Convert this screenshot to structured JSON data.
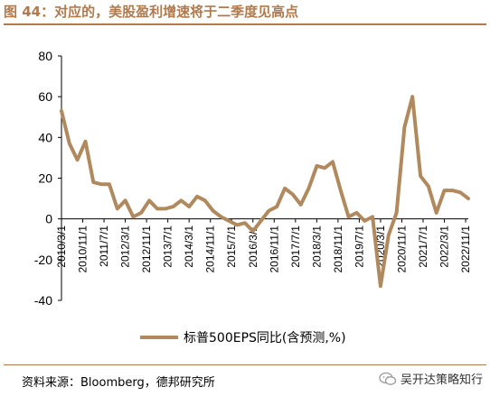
{
  "title": "图 44：对应的，美股盈利增速将于二季度见高点",
  "source": "资料来源：Bloomberg，德邦研究所",
  "watermark": "吴开达策略知行",
  "colors": {
    "accent": "#b07a4e",
    "series": "#b08a5e"
  },
  "chart_data": {
    "type": "line",
    "ylim": [
      -40,
      80
    ],
    "yticks": [
      -40,
      -20,
      0,
      20,
      40,
      60,
      80
    ],
    "xtick_labels": [
      "2010/3/1",
      "2010/11/1",
      "2011/7/1",
      "2012/3/1",
      "2012/11/1",
      "2013/7/1",
      "2014/3/1",
      "2014/11/1",
      "2015/7/1",
      "2016/3/1",
      "2016/11/1",
      "2017/7/1",
      "2018/3/1",
      "2018/11/1",
      "2019/7/1",
      "2020/3/1",
      "2020/11/1",
      "2021/7/1",
      "2022/3/1",
      "2022/11/1"
    ],
    "legend": "bottom",
    "series": [
      {
        "name": "标普500EPS同比(含预测,%)",
        "x": [
          "2010/3/1",
          "2010/6/1",
          "2010/9/1",
          "2010/12/1",
          "2011/3/1",
          "2011/6/1",
          "2011/9/1",
          "2011/12/1",
          "2012/3/1",
          "2012/6/1",
          "2012/9/1",
          "2012/12/1",
          "2013/3/1",
          "2013/6/1",
          "2013/9/1",
          "2013/12/1",
          "2014/3/1",
          "2014/6/1",
          "2014/9/1",
          "2014/12/1",
          "2015/3/1",
          "2015/6/1",
          "2015/9/1",
          "2015/12/1",
          "2016/3/1",
          "2016/6/1",
          "2016/9/1",
          "2016/12/1",
          "2017/3/1",
          "2017/6/1",
          "2017/9/1",
          "2017/12/1",
          "2018/3/1",
          "2018/6/1",
          "2018/9/1",
          "2018/12/1",
          "2019/3/1",
          "2019/6/1",
          "2019/9/1",
          "2019/12/1",
          "2020/3/1",
          "2020/6/1",
          "2020/9/1",
          "2020/12/1",
          "2021/3/1",
          "2021/6/1",
          "2021/9/1",
          "2021/12/1",
          "2022/3/1",
          "2022/6/1",
          "2022/9/1",
          "2022/12/1"
        ],
        "values": [
          53,
          37,
          29,
          38,
          18,
          17,
          17,
          5,
          9,
          1,
          3,
          9,
          5,
          5,
          6,
          9,
          6,
          11,
          9,
          4,
          1,
          -1,
          -3,
          -2,
          -6,
          -1,
          4,
          6,
          15,
          12,
          7,
          15,
          26,
          25,
          28,
          14,
          1,
          3,
          -1,
          1,
          -33,
          -8,
          3,
          45,
          60,
          21,
          16,
          3,
          14,
          14,
          13,
          10
        ]
      }
    ]
  }
}
